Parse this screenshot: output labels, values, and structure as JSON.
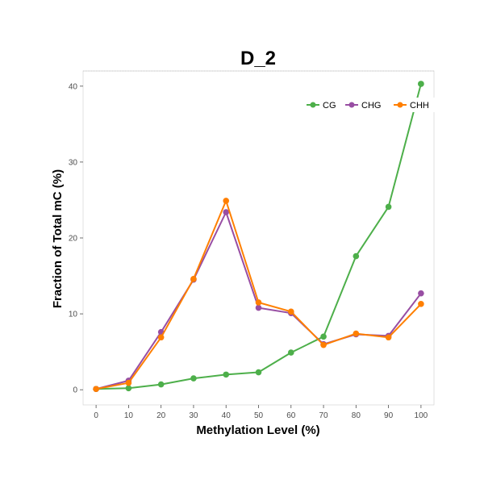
{
  "chart_data": {
    "type": "line",
    "title": "D_2",
    "xlabel": "Methylation Level (%)",
    "ylabel": "Fraction of Total mC (%)",
    "x": [
      0,
      10,
      20,
      30,
      40,
      50,
      60,
      70,
      80,
      90,
      100
    ],
    "xlim": [
      -4,
      104
    ],
    "ylim": [
      -2,
      42
    ],
    "xticks": [
      "0",
      "10",
      "20",
      "30",
      "40",
      "50",
      "60",
      "70",
      "80",
      "90",
      "100"
    ],
    "yticks": [
      "0",
      "10",
      "20",
      "30",
      "40"
    ],
    "yticks_values": [
      0,
      10,
      20,
      30,
      40
    ],
    "legend_position": "top-right",
    "grid": false,
    "series": [
      {
        "name": "CG",
        "color": "#4daf4a",
        "values": [
          0.1,
          0.2,
          0.7,
          1.5,
          2.0,
          2.3,
          4.9,
          7.0,
          17.6,
          24.1,
          40.3
        ]
      },
      {
        "name": "CHG",
        "color": "#984ea3",
        "values": [
          0.1,
          1.2,
          7.6,
          14.5,
          23.4,
          10.8,
          10.1,
          6.0,
          7.3,
          7.1,
          12.7
        ]
      },
      {
        "name": "CHH",
        "color": "#ff7f00",
        "values": [
          0.1,
          0.9,
          6.9,
          14.6,
          24.9,
          11.5,
          10.3,
          5.9,
          7.4,
          6.9,
          11.3
        ]
      }
    ]
  }
}
